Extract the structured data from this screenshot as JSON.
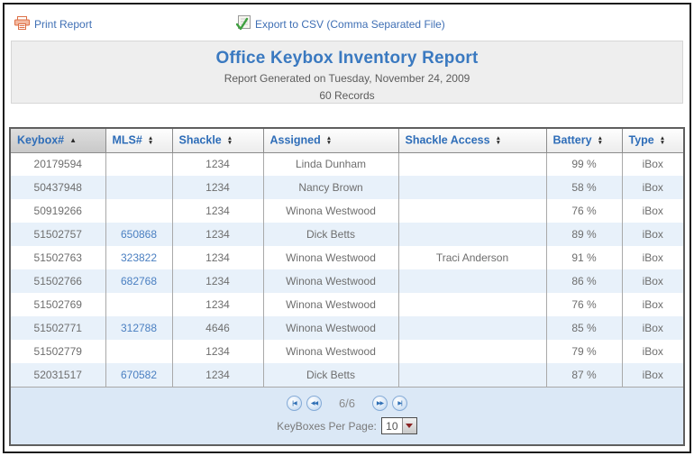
{
  "toolbar": {
    "print_label": "Print Report",
    "export_label": "Export to CSV (Comma Separated File)"
  },
  "header": {
    "title": "Office Keybox Inventory Report",
    "subtitle": "Report Generated on Tuesday, November 24, 2009",
    "records": "60 Records"
  },
  "table": {
    "columns": [
      {
        "key": "keybox",
        "label": "Keybox#",
        "sort": "asc"
      },
      {
        "key": "mls",
        "label": "MLS#",
        "sort": "both"
      },
      {
        "key": "shackle",
        "label": "Shackle",
        "sort": "both"
      },
      {
        "key": "assigned",
        "label": "Assigned",
        "sort": "both"
      },
      {
        "key": "access",
        "label": "Shackle Access",
        "sort": "both"
      },
      {
        "key": "battery",
        "label": "Battery",
        "sort": "both"
      },
      {
        "key": "type",
        "label": "Type",
        "sort": "both"
      }
    ],
    "rows": [
      {
        "keybox": "20179594",
        "mls": "",
        "shackle": "1234",
        "assigned": "Linda Dunham",
        "access": "",
        "battery": "99 %",
        "type": "iBox"
      },
      {
        "keybox": "50437948",
        "mls": "",
        "shackle": "1234",
        "assigned": "Nancy Brown",
        "access": "",
        "battery": "58 %",
        "type": "iBox"
      },
      {
        "keybox": "50919266",
        "mls": "",
        "shackle": "1234",
        "assigned": "Winona Westwood",
        "access": "",
        "battery": "76 %",
        "type": "iBox"
      },
      {
        "keybox": "51502757",
        "mls": "650868",
        "shackle": "1234",
        "assigned": "Dick Betts",
        "access": "",
        "battery": "89 %",
        "type": "iBox"
      },
      {
        "keybox": "51502763",
        "mls": "323822",
        "shackle": "1234",
        "assigned": "Winona Westwood",
        "access": "Traci Anderson",
        "battery": "91 %",
        "type": "iBox"
      },
      {
        "keybox": "51502766",
        "mls": "682768",
        "shackle": "1234",
        "assigned": "Winona Westwood",
        "access": "",
        "battery": "86 %",
        "type": "iBox"
      },
      {
        "keybox": "51502769",
        "mls": "",
        "shackle": "1234",
        "assigned": "Winona Westwood",
        "access": "",
        "battery": "76 %",
        "type": "iBox"
      },
      {
        "keybox": "51502771",
        "mls": "312788",
        "shackle": "4646",
        "assigned": "Winona Westwood",
        "access": "",
        "battery": "85 %",
        "type": "iBox"
      },
      {
        "keybox": "51502779",
        "mls": "",
        "shackle": "1234",
        "assigned": "Winona Westwood",
        "access": "",
        "battery": "79 %",
        "type": "iBox"
      },
      {
        "keybox": "52031517",
        "mls": "670582",
        "shackle": "1234",
        "assigned": "Dick Betts",
        "access": "",
        "battery": "87 %",
        "type": "iBox"
      }
    ]
  },
  "pagination": {
    "first_icon": "|◀",
    "prev_icon": "◀◀",
    "page_indicator": "6/6",
    "next_icon": "▶▶",
    "last_icon": "▶|",
    "per_page_label": "KeyBoxes Per Page:",
    "per_page_value": "10"
  },
  "colors": {
    "title_blue": "#3a79c0",
    "link_blue": "#3f6fb4",
    "header_blue": "#2e6db8",
    "row_stripe": "#e8f1fa",
    "footer_band": "#dbe8f6",
    "printer_icon_orange": "#dd6f45",
    "check_icon_green": "#3fa03f"
  }
}
